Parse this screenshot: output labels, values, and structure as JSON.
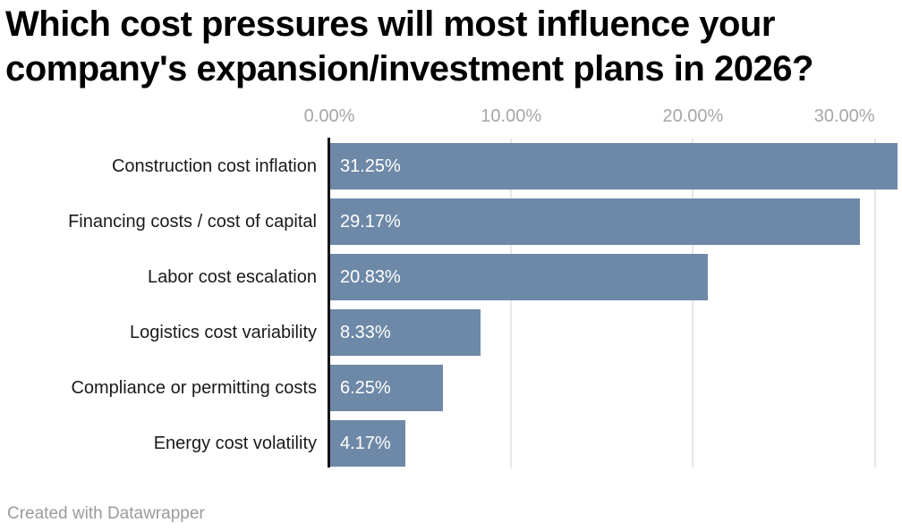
{
  "chart": {
    "title_lines": [
      "Which cost pressures will most influence your",
      "company's expansion/investment plans in 2026?"
    ],
    "footer_credit": "Created with Datawrapper"
  },
  "chart_data": {
    "type": "bar",
    "orientation": "horizontal",
    "title": "Which cost pressures will most influence your company's expansion/investment plans in 2026?",
    "categories": [
      "Construction cost inflation",
      "Financing costs / cost of capital",
      "Labor cost escalation",
      "Logistics cost variability",
      "Compliance or permitting costs",
      "Energy cost volatility"
    ],
    "values": [
      31.25,
      29.17,
      20.83,
      8.33,
      6.25,
      4.17
    ],
    "value_labels": [
      "31.25%",
      "29.17%",
      "20.83%",
      "8.33%",
      "6.25%",
      "4.17%"
    ],
    "x_ticks": [
      {
        "value": 0,
        "label": "0.00%"
      },
      {
        "value": 10,
        "label": "10.00%"
      },
      {
        "value": 20,
        "label": "20.00%"
      },
      {
        "value": 30,
        "label": "30.00%"
      }
    ],
    "xlim": [
      0,
      31.25
    ],
    "grid": "vertical",
    "legend": "none",
    "colors": {
      "bar": "#6E89A7",
      "value_label": "#FFFFFF",
      "category_label": "#1A1A1A",
      "tick_label": "#A6A6A6",
      "gridline": "#E7E7E7",
      "axis_line": "#141414",
      "title": "#000000",
      "footer": "#9B9B9B",
      "background": "#FFFFFF"
    }
  }
}
